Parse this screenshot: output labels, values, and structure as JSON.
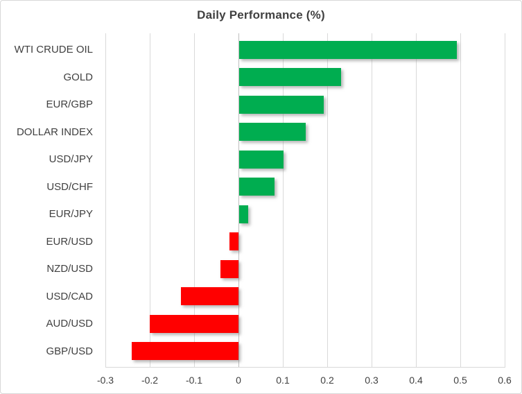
{
  "chart_data": {
    "type": "bar",
    "orientation": "horizontal",
    "title": "Daily Performance (%)",
    "categories": [
      "WTI CRUDE OIL",
      "GOLD",
      "EUR/GBP",
      "DOLLAR INDEX",
      "USD/JPY",
      "USD/CHF",
      "EUR/JPY",
      "EUR/USD",
      "NZD/USD",
      "USD/CAD",
      "AUD/USD",
      "GBP/USD"
    ],
    "values": [
      0.49,
      0.23,
      0.19,
      0.15,
      0.1,
      0.08,
      0.02,
      -0.02,
      -0.04,
      -0.13,
      -0.2,
      -0.24
    ],
    "xlabel": "",
    "ylabel": "",
    "xlim": [
      -0.3,
      0.6
    ],
    "x_ticks": [
      -0.3,
      -0.2,
      -0.1,
      0,
      0.1,
      0.2,
      0.3,
      0.4,
      0.5,
      0.6
    ],
    "x_tick_labels": [
      "-0.3",
      "-0.2",
      "-0.1",
      "0",
      "0.1",
      "0.2",
      "0.3",
      "0.4",
      "0.5",
      "0.6"
    ],
    "grid": "vertical-only",
    "legend": "none",
    "colors": {
      "positive": "#00AD50",
      "negative": "#FF0000",
      "gridline": "#D9D9D9",
      "zero_axis": "#BFBFBF",
      "text": "#404040",
      "border": "#D7D7D7",
      "background": "#FFFFFF"
    }
  }
}
